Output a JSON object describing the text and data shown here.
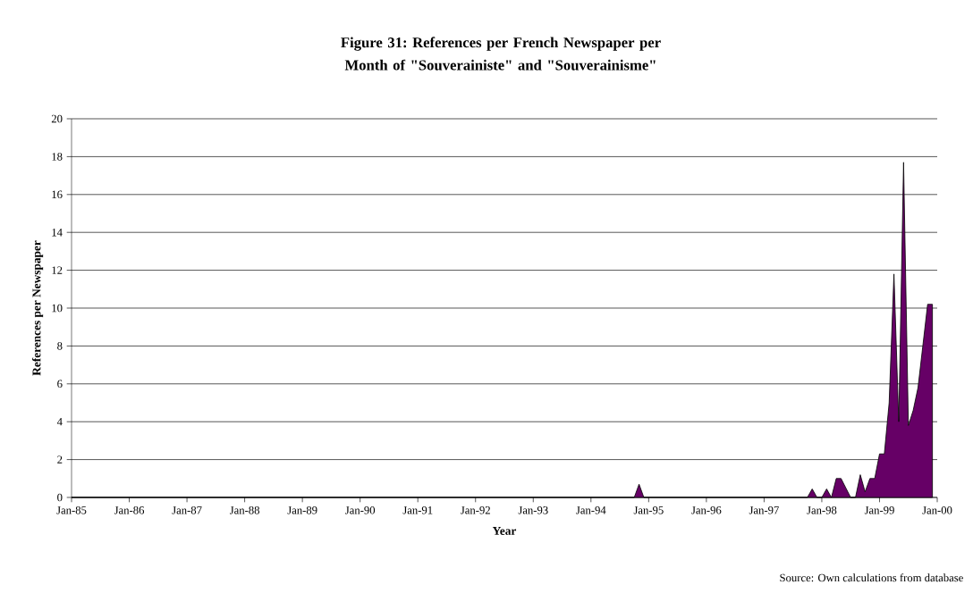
{
  "chart_data": {
    "type": "area",
    "title": "Figure 31: References per French Newspaper per Month of \"Souverainiste\" and \"Souverainisme\"",
    "xlabel": "Year",
    "ylabel": "References per Newspaper",
    "annotations": [
      "Source: Own calculations from database"
    ],
    "x": [
      "1985-01",
      "1994-10",
      "1994-11",
      "1994-12",
      "1997-10",
      "1997-11",
      "1997-12",
      "1998-01",
      "1998-02",
      "1998-03",
      "1998-04",
      "1998-05",
      "1998-06",
      "1998-07",
      "1998-08",
      "1998-09",
      "1998-10",
      "1998-11",
      "1998-12",
      "1999-01",
      "1999-02",
      "1999-03",
      "1999-04",
      "1999-05",
      "1999-06",
      "1999-07",
      "1999-08",
      "1999-09",
      "1999-10",
      "1999-11",
      "1999-12"
    ],
    "values": [
      0,
      0,
      0.7,
      0,
      0,
      0.45,
      0,
      0,
      0.45,
      0,
      1.0,
      1.0,
      0.5,
      0,
      0,
      1.2,
      0.3,
      1.0,
      1.0,
      2.3,
      2.3,
      5.0,
      11.8,
      4.0,
      17.7,
      3.8,
      4.6,
      5.8,
      8.0,
      10.2,
      10.2
    ],
    "color": "#660066",
    "xlim": [
      "1985-01",
      "2000-01"
    ],
    "xticks": [
      {
        "value": "1985-01",
        "label": "Jan-85"
      },
      {
        "value": "1986-01",
        "label": "Jan-86"
      },
      {
        "value": "1987-01",
        "label": "Jan-87"
      },
      {
        "value": "1988-01",
        "label": "Jan-88"
      },
      {
        "value": "1989-01",
        "label": "Jan-89"
      },
      {
        "value": "1990-01",
        "label": "Jan-90"
      },
      {
        "value": "1991-01",
        "label": "Jan-91"
      },
      {
        "value": "1992-01",
        "label": "Jan-92"
      },
      {
        "value": "1993-01",
        "label": "Jan-93"
      },
      {
        "value": "1994-01",
        "label": "Jan-94"
      },
      {
        "value": "1995-01",
        "label": "Jan-95"
      },
      {
        "value": "1996-01",
        "label": "Jan-96"
      },
      {
        "value": "1997-01",
        "label": "Jan-97"
      },
      {
        "value": "1998-01",
        "label": "Jan-98"
      },
      {
        "value": "1999-01",
        "label": "Jan-99"
      },
      {
        "value": "2000-01",
        "label": "Jan-00"
      }
    ],
    "ylim": [
      0,
      20
    ],
    "yticks": [
      0,
      2,
      4,
      6,
      8,
      10,
      12,
      14,
      16,
      18,
      20
    ],
    "grid": "y",
    "marker": "none"
  }
}
